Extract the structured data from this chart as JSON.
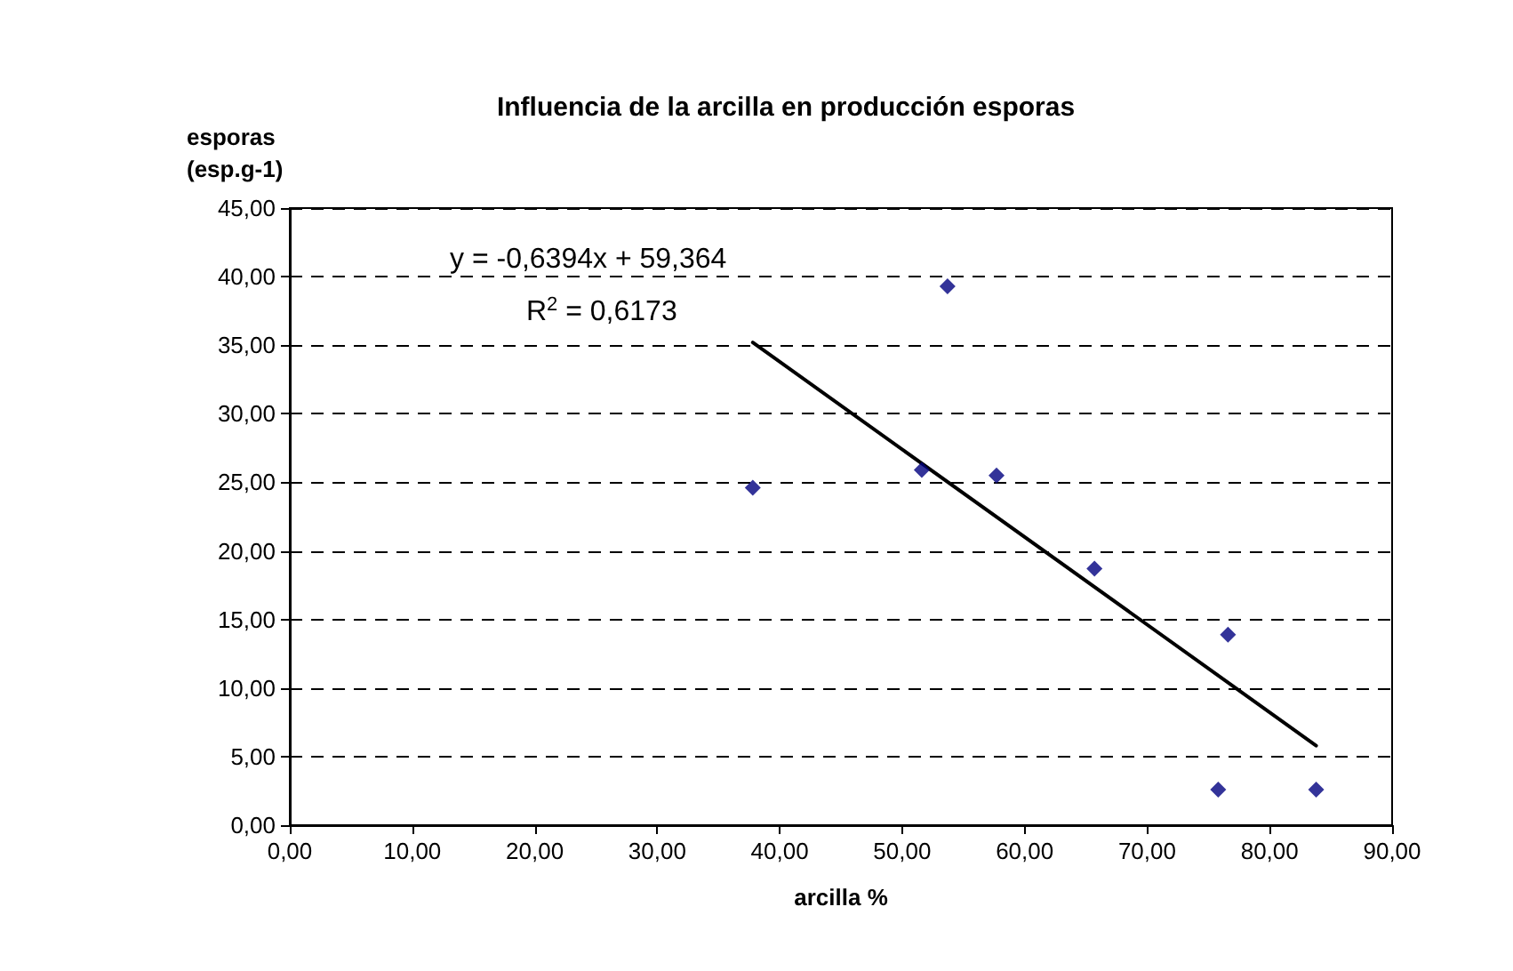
{
  "chart_data": {
    "type": "scatter",
    "title": "Influencia de la arcilla en producción esporas",
    "xlabel": "arcilla %",
    "ylabel": "esporas (esp.g-1)",
    "annotations": [
      "y = -0,6394x + 59,364",
      "R$^{2}$ = 0,6173"
    ],
    "series": [
      {
        "color": "#000080",
        "marker": "diamond",
        "x": [
          37.8,
          51.6,
          53.7,
          57.7,
          65.7,
          76.6,
          75.8,
          83.8
        ],
        "values": [
          24.6,
          25.9,
          39.3,
          25.5,
          18.7,
          13.9,
          2.6,
          2.6
        ]
      },
      {
        "type": "line",
        "color": "#000000",
        "marker": "none",
        "line_style": "solid",
        "x": [
          37.8,
          83.8
        ],
        "values": [
          35.2,
          5.8
        ]
      }
    ],
    "xlim": [
      0,
      90
    ],
    "xticks": [
      {
        "value": 0,
        "label": "0,00"
      },
      {
        "value": 10,
        "label": "10,00"
      },
      {
        "value": 20,
        "label": "20,00"
      },
      {
        "value": 30,
        "label": "30,00"
      },
      {
        "value": 40,
        "label": "40,00"
      },
      {
        "value": 50,
        "label": "50,00"
      },
      {
        "value": 60,
        "label": "60,00"
      },
      {
        "value": 70,
        "label": "70,00"
      },
      {
        "value": 80,
        "label": "80,00"
      },
      {
        "value": 90,
        "label": "90,00"
      }
    ],
    "ylim": [
      0,
      45
    ],
    "yticks": [
      {
        "value": 0,
        "label": "0,00"
      },
      {
        "value": 5,
        "label": "5,00"
      },
      {
        "value": 10,
        "label": "10,00"
      },
      {
        "value": 15,
        "label": "15,00"
      },
      {
        "value": 20,
        "label": "20,00"
      },
      {
        "value": 25,
        "label": "25,00"
      },
      {
        "value": 30,
        "label": "30,00"
      },
      {
        "value": 35,
        "label": "35,00"
      },
      {
        "value": 40,
        "label": "40,00"
      },
      {
        "value": 45,
        "label": "45,00"
      }
    ],
    "grid": "y"
  }
}
